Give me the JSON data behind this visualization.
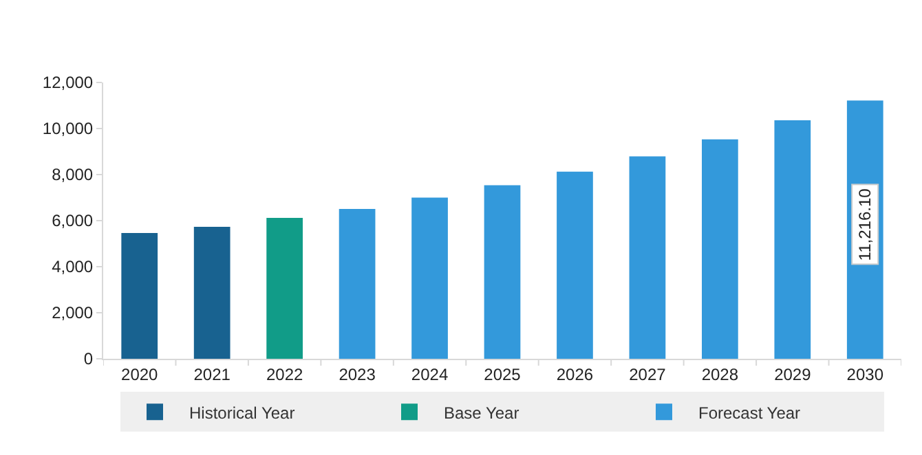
{
  "chart_data": {
    "type": "bar",
    "categories": [
      "2020",
      "2021",
      "2022",
      "2023",
      "2024",
      "2025",
      "2026",
      "2027",
      "2028",
      "2029",
      "2030"
    ],
    "series": [
      {
        "name": "Historical Year",
        "color": "#186290",
        "values": [
          5460,
          5730,
          null,
          null,
          null,
          null,
          null,
          null,
          null,
          null,
          null
        ]
      },
      {
        "name": "Base Year",
        "color": "#119c88",
        "values": [
          null,
          null,
          6120,
          null,
          null,
          null,
          null,
          null,
          null,
          null,
          null
        ]
      },
      {
        "name": "Forecast Year",
        "color": "#3399db",
        "values": [
          null,
          null,
          null,
          6510,
          7000,
          7540,
          8130,
          8790,
          9530,
          10360,
          11216.1
        ],
        "value_labels": [
          null,
          null,
          null,
          null,
          null,
          null,
          null,
          null,
          null,
          null,
          "11,216.10"
        ]
      }
    ],
    "ylim": [
      0,
      12000
    ],
    "yticks": [
      {
        "value": 0,
        "label": "0"
      },
      {
        "value": 2000,
        "label": "2,000"
      },
      {
        "value": 4000,
        "label": "4,000"
      },
      {
        "value": 6000,
        "label": "6,000"
      },
      {
        "value": 8000,
        "label": "8,000"
      },
      {
        "value": 10000,
        "label": "10,000"
      },
      {
        "value": 12000,
        "label": "12,000"
      }
    ],
    "legend": "bottom"
  }
}
